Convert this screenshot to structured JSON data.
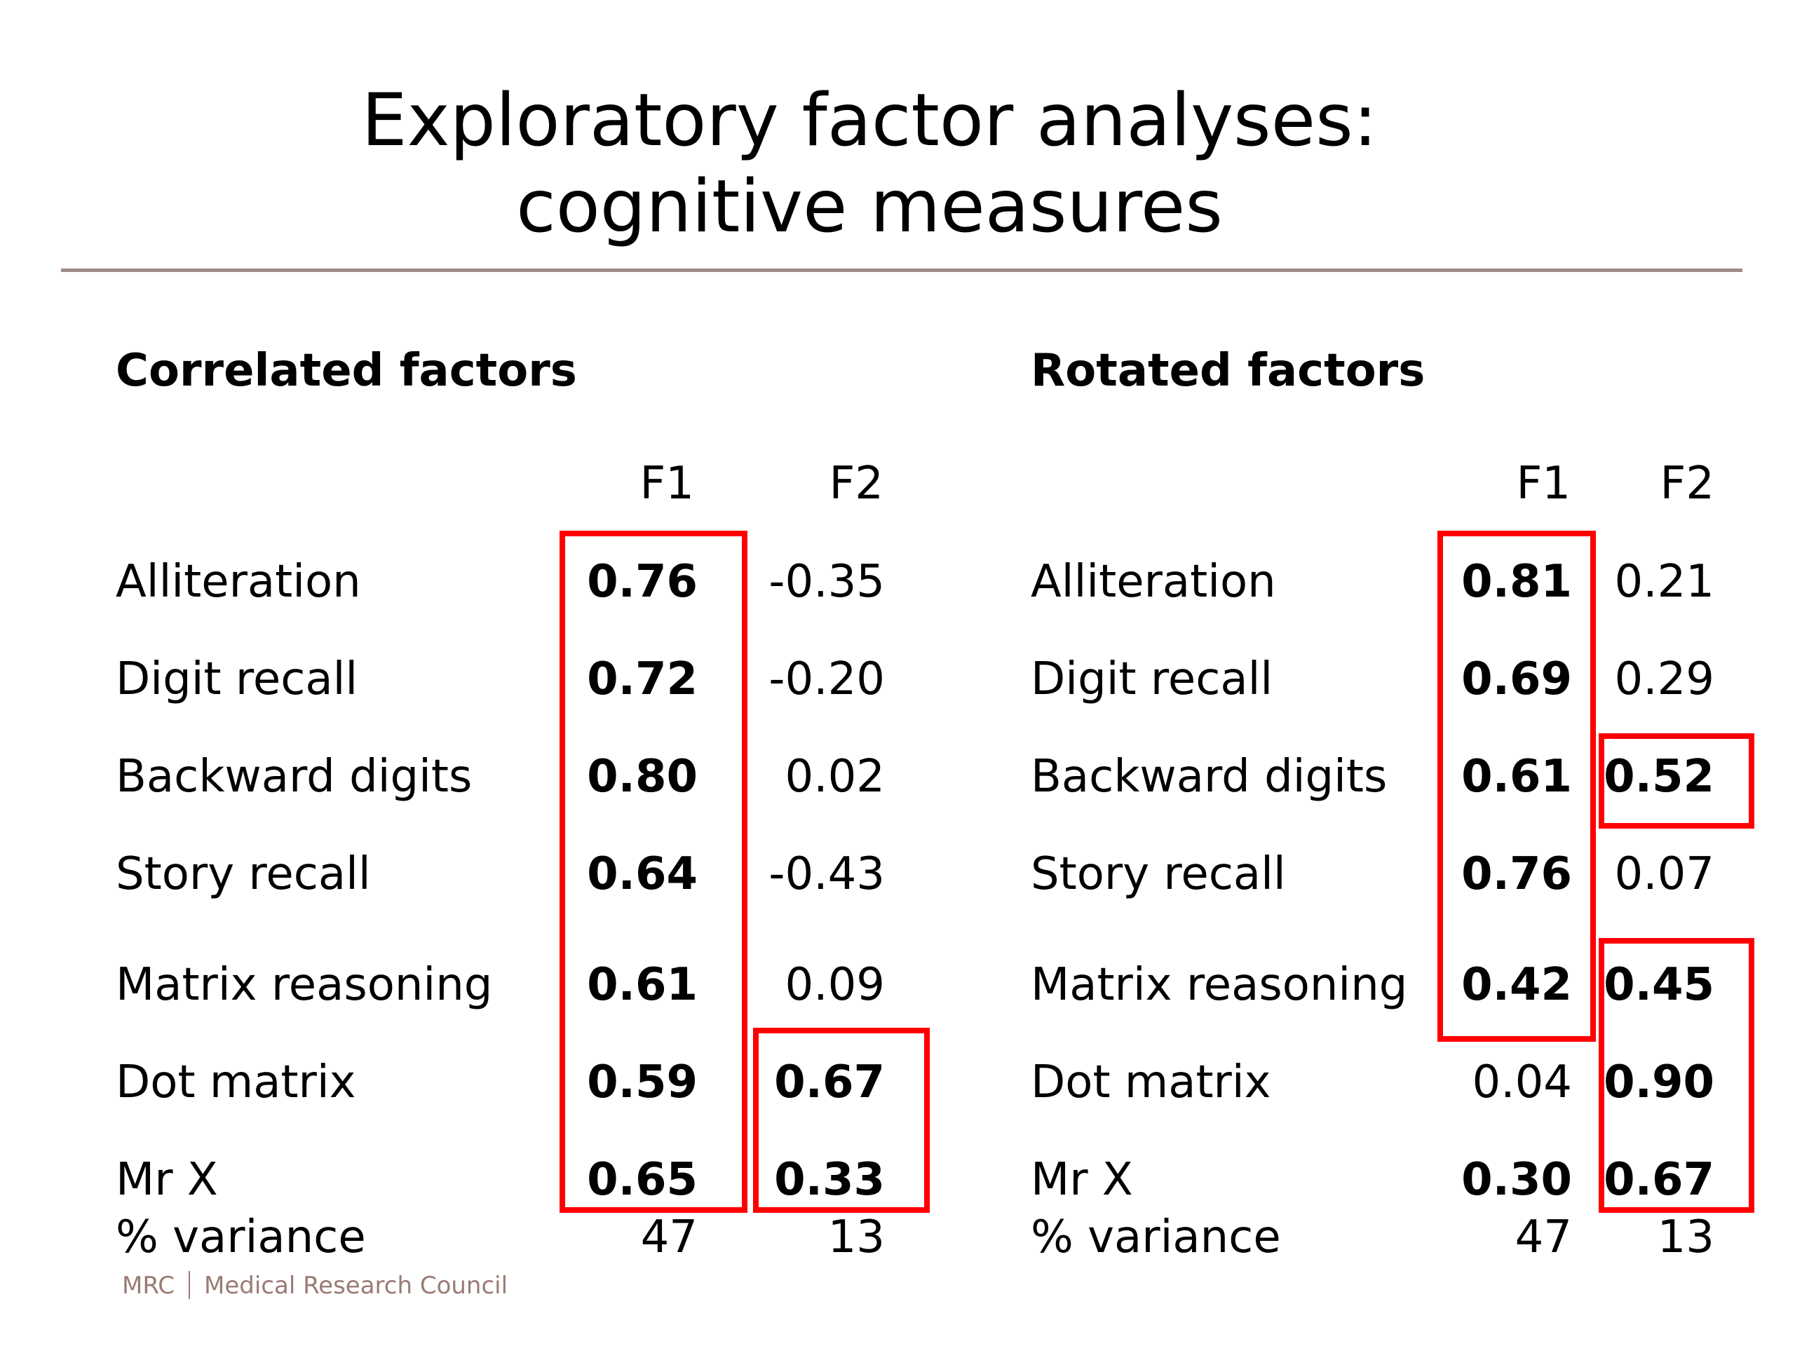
{
  "title": {
    "line1": "Exploratory factor analyses:",
    "line2": "cognitive measures"
  },
  "correlated": {
    "heading": "Correlated factors",
    "col_f1": "F1",
    "col_f2": "F2",
    "rows": [
      {
        "label": "Alliteration",
        "f1": "0.76",
        "f2": "-0.35"
      },
      {
        "label": "Digit recall",
        "f1": "0.72",
        "f2": "-0.20"
      },
      {
        "label": "Backward digits",
        "f1": "0.80",
        "f2": "0.02"
      },
      {
        "label": "Story recall",
        "f1": "0.64",
        "f2": "-0.43"
      },
      {
        "label": "Matrix reasoning",
        "f1": "0.61",
        "f2": "0.09"
      },
      {
        "label": "Dot matrix",
        "f1": "0.59",
        "f2": "0.67"
      },
      {
        "label": "Mr X",
        "f1": "0.65",
        "f2": "0.33"
      }
    ],
    "variance": {
      "label": "% variance",
      "f1": "47",
      "f2": "13"
    }
  },
  "rotated": {
    "heading": "Rotated factors",
    "col_f1": "F1",
    "col_f2": "F2",
    "rows": [
      {
        "label": "Alliteration",
        "f1": "0.81",
        "f2": "0.21"
      },
      {
        "label": "Digit recall",
        "f1": "0.69",
        "f2": "0.29"
      },
      {
        "label": "Backward digits",
        "f1": "0.61",
        "f2": "0.52"
      },
      {
        "label": "Story recall",
        "f1": "0.76",
        "f2": "0.07"
      },
      {
        "label": "Matrix reasoning",
        "f1": "0.42",
        "f2": "0.45"
      },
      {
        "label": "Dot matrix",
        "f1": "0.04",
        "f2": "0.90"
      },
      {
        "label": "Mr X",
        "f1": "0.30",
        "f2": "0.67"
      }
    ],
    "variance": {
      "label": "% variance",
      "f1": "47",
      "f2": "13"
    }
  },
  "footer": {
    "org_short": "MRC",
    "org_full": "Medical Research Council"
  },
  "colors": {
    "highlight": "#ff0000",
    "rule": "#a08a86",
    "footer": "#9a7b74"
  }
}
